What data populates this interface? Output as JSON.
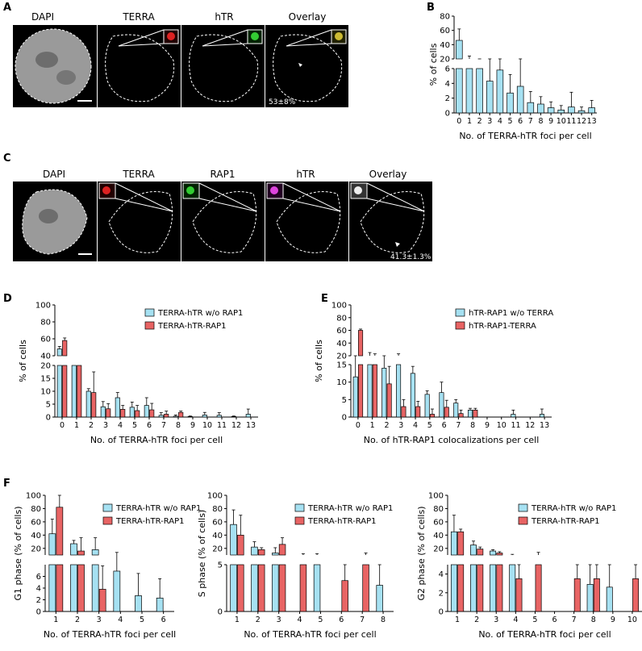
{
  "colors": {
    "cyan": "#a6e1f2",
    "red": "#e86464",
    "dapi": "#9a9a9a"
  },
  "panel_letters": [
    "A",
    "B",
    "C",
    "D",
    "E",
    "F"
  ],
  "panel_a": {
    "labels": [
      "DAPI",
      "TERRA",
      "hTR",
      "Overlay"
    ],
    "percent": "53±8%"
  },
  "panel_c": {
    "labels": [
      "DAPI",
      "TERRA",
      "RAP1",
      "hTR",
      "Overlay"
    ],
    "percent": "41.3±1.3%"
  },
  "chart_data": [
    {
      "id": "B",
      "type": "bar",
      "title": "",
      "xlabel": "No. of TERRA-hTR foci per cell",
      "ylabel": "% of cells",
      "categories": [
        "0",
        "1",
        "2",
        "3",
        "4",
        "5",
        "6",
        "7",
        "8",
        "9",
        "10",
        "11",
        "12",
        "13"
      ],
      "broken_axis": {
        "lower": [
          0,
          6
        ],
        "upper": [
          20,
          80
        ]
      },
      "lower_ticks": [
        0,
        2,
        4,
        6
      ],
      "upper_ticks": [
        20,
        40,
        60,
        80
      ],
      "series": [
        {
          "name": "TERRA-hTR",
          "color": "#a6e1f2",
          "values": [
            46,
            20,
            10,
            4.3,
            5.8,
            2.7,
            3.6,
            1.4,
            1.2,
            0.7,
            0.4,
            0.8,
            0.3,
            0.7
          ],
          "errors": [
            16,
            4,
            2,
            2.5,
            5,
            2.5,
            2.5,
            1.5,
            1,
            0.8,
            0.6,
            2,
            0.5,
            1
          ]
        }
      ]
    },
    {
      "id": "D",
      "type": "bar",
      "title": "",
      "xlabel": "No. of TERRA-hTR foci per cell",
      "ylabel": "% of cells",
      "categories": [
        "0",
        "1",
        "2",
        "3",
        "4",
        "5",
        "6",
        "7",
        "8",
        "9",
        "10",
        "11",
        "12",
        "13"
      ],
      "broken_axis": {
        "lower": [
          0,
          20
        ],
        "upper": [
          40,
          100
        ]
      },
      "lower_ticks": [
        0,
        5,
        10,
        15,
        20
      ],
      "upper_ticks": [
        40,
        60,
        80,
        100
      ],
      "legend": [
        "TERRA-hTR w/o RAP1",
        "TERRA-hTR-RAP1"
      ],
      "series": [
        {
          "name": "TERRA-hTR w/o RAP1",
          "color": "#a6e1f2",
          "values": [
            48,
            20,
            10,
            4,
            7.5,
            3.8,
            4.5,
            0.7,
            0.3,
            0.2,
            0.8,
            0.7,
            0.2,
            1.1
          ],
          "errors": [
            3,
            0,
            1,
            2,
            2,
            2,
            3,
            1,
            0.5,
            0.2,
            1,
            1,
            0.2,
            2
          ]
        },
        {
          "name": "TERRA-hTR-RAP1",
          "color": "#e86464",
          "values": [
            58,
            20,
            9.5,
            3.2,
            3,
            2.5,
            2.8,
            1.1,
            1.8,
            0,
            0,
            0,
            0,
            0
          ],
          "errors": [
            3,
            0,
            8,
            2,
            1.5,
            2,
            2.5,
            1.2,
            0.5,
            0,
            0,
            0,
            0,
            0
          ]
        }
      ]
    },
    {
      "id": "E",
      "type": "bar",
      "title": "",
      "xlabel": "No. of hTR-RAP1 colocalizations per cell",
      "ylabel": "% of cells",
      "categories": [
        "0",
        "1",
        "2",
        "3",
        "4",
        "5",
        "6",
        "7",
        "8",
        "9",
        "10",
        "11",
        "12",
        "13"
      ],
      "broken_axis": {
        "lower": [
          0,
          15
        ],
        "upper": [
          20,
          100
        ]
      },
      "lower_ticks": [
        0,
        5,
        10,
        15
      ],
      "upper_ticks": [
        20,
        40,
        60,
        80,
        100
      ],
      "legend": [
        "hTR-RAP1 w/o TERRA",
        "hTR-RAP1-TERRA"
      ],
      "series": [
        {
          "name": "hTR-RAP1 w/o TERRA",
          "color": "#a6e1f2",
          "values": [
            11.5,
            20,
            14,
            20,
            12.5,
            6.5,
            7,
            4,
            2,
            0,
            0,
            0.8,
            0,
            0.8
          ],
          "errors": [
            4,
            5,
            2,
            3,
            2,
            1,
            3,
            1,
            0.5,
            0,
            0,
            1.2,
            0,
            1.5
          ]
        },
        {
          "name": "hTR-RAP1-TERRA",
          "color": "#e86464",
          "values": [
            60,
            20,
            9.5,
            3,
            3,
            0.8,
            2.8,
            1,
            2,
            0,
            0,
            0,
            0,
            0
          ],
          "errors": [
            2,
            3,
            5,
            2,
            1.5,
            1.5,
            2,
            1,
            0.5,
            0,
            0,
            0,
            0,
            0
          ]
        }
      ]
    },
    {
      "id": "F-G1",
      "type": "bar",
      "title": "",
      "xlabel": "No. of TERRA-hTR foci per cell",
      "ylabel": "G1 phase (% of cells)",
      "categories": [
        "1",
        "2",
        "3",
        "4",
        "5",
        "6"
      ],
      "broken_axis": {
        "lower": [
          0,
          8
        ],
        "upper": [
          10,
          100
        ]
      },
      "lower_ticks": [
        0,
        2,
        4,
        6
      ],
      "upper_ticks": [
        20,
        40,
        60,
        80,
        100
      ],
      "legend": [
        "TERRA-hTR w/o RAP1",
        "TERRA-hTR-RAP1"
      ],
      "series": [
        {
          "name": "TERRA-hTR w/o RAP1",
          "color": "#a6e1f2",
          "values": [
            42,
            27,
            18,
            6.9,
            2.7,
            2.3
          ],
          "errors": [
            22,
            5,
            18,
            7,
            3.8,
            3.3
          ]
        },
        {
          "name": "TERRA-hTR-RAP1",
          "color": "#e86464",
          "values": [
            82,
            16,
            3.8,
            0,
            0,
            0
          ],
          "errors": [
            18,
            20,
            4,
            0,
            0,
            0
          ]
        }
      ]
    },
    {
      "id": "F-S",
      "type": "bar",
      "title": "",
      "xlabel": "No. of TERRA-hTR foci per cell",
      "ylabel": "S phase (% of cells)",
      "categories": [
        "1",
        "2",
        "3",
        "4",
        "5",
        "6",
        "7",
        "8"
      ],
      "broken_axis": {
        "lower": [
          0,
          5
        ],
        "upper": [
          10,
          100
        ]
      },
      "lower_ticks": [
        0,
        5
      ],
      "upper_ticks": [
        20,
        40,
        60,
        80,
        100
      ],
      "legend": [
        "TERRA-hTR w/o RAP1",
        "TERRA-hTR-RAP1"
      ],
      "series": [
        {
          "name": "TERRA-hTR w/o RAP1",
          "color": "#a6e1f2",
          "values": [
            56,
            22,
            13,
            0,
            9,
            0,
            0,
            2.8
          ],
          "errors": [
            22,
            8,
            8,
            0,
            3,
            0,
            0,
            2.2
          ]
        },
        {
          "name": "TERRA-hTR-RAP1",
          "color": "#e86464",
          "values": [
            40,
            18,
            26,
            9,
            0,
            3.3,
            9,
            0
          ],
          "errors": [
            30,
            3,
            10,
            3,
            0,
            1.7,
            4,
            0
          ]
        }
      ]
    },
    {
      "id": "F-G2",
      "type": "bar",
      "title": "",
      "xlabel": "No. of TERRA-hTR foci per cell",
      "ylabel": "G2 phase (% of cells)",
      "categories": [
        "1",
        "2",
        "3",
        "4",
        "5",
        "6",
        "7",
        "8",
        "9",
        "10"
      ],
      "broken_axis": {
        "lower": [
          0,
          5
        ],
        "upper": [
          10,
          100
        ]
      },
      "lower_ticks": [
        0,
        2,
        4
      ],
      "upper_ticks": [
        20,
        40,
        60,
        80,
        100
      ],
      "legend": [
        "TERRA-hTR w/o RAP1",
        "TERRA-hTR-RAP1"
      ],
      "series": [
        {
          "name": "TERRA-hTR w/o RAP1",
          "color": "#a6e1f2",
          "values": [
            45,
            25,
            16,
            9,
            0,
            0,
            0,
            2.9,
            2.6,
            0
          ],
          "errors": [
            25,
            6,
            2,
            2,
            0,
            0,
            0,
            2.1,
            2.4,
            0
          ]
        },
        {
          "name": "TERRA-hTR-RAP1",
          "color": "#e86464",
          "values": [
            45,
            19,
            13,
            3.5,
            10,
            0,
            3.5,
            3.5,
            0,
            3.5
          ],
          "errors": [
            4,
            3,
            2,
            1.5,
            4,
            0,
            1.5,
            1.5,
            0,
            1.5
          ]
        }
      ]
    }
  ]
}
